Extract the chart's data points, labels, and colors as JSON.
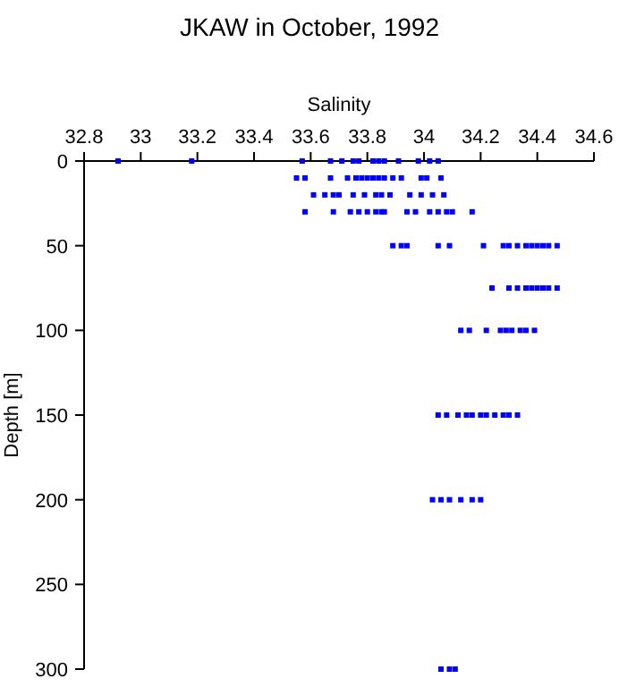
{
  "chart_data": {
    "type": "scatter",
    "title": "JKAW in October, 1992",
    "xlabel": "Salinity",
    "ylabel": "Depth [m]",
    "xlim": [
      32.8,
      34.6
    ],
    "xticks": [
      32.8,
      33,
      33.2,
      33.4,
      33.6,
      33.8,
      34,
      34.2,
      34.4,
      34.6
    ],
    "ylim": [
      300,
      0
    ],
    "yticks": [
      0,
      50,
      100,
      150,
      200,
      250,
      300
    ],
    "grid": false,
    "marker": "square",
    "series": [
      {
        "color": "#0000ff",
        "x": [
          32.92,
          33.18,
          33.57,
          33.67,
          33.71,
          33.75,
          33.77,
          33.82,
          33.84,
          33.86,
          33.91,
          33.98,
          34.02,
          34.05,
          33.55,
          33.58,
          33.67,
          33.73,
          33.76,
          33.78,
          33.8,
          33.82,
          33.84,
          33.86,
          33.89,
          33.92,
          33.99,
          34.01,
          34.06,
          33.61,
          33.65,
          33.68,
          33.7,
          33.75,
          33.79,
          33.83,
          33.85,
          33.88,
          33.95,
          33.99,
          34.03,
          34.07,
          33.58,
          33.68,
          33.74,
          33.77,
          33.8,
          33.83,
          33.85,
          33.86,
          33.94,
          33.97,
          34.02,
          34.05,
          34.08,
          34.1,
          34.17,
          33.89,
          33.92,
          33.94,
          34.05,
          34.09,
          34.21,
          34.28,
          34.3,
          34.33,
          34.36,
          34.38,
          34.4,
          34.42,
          34.44,
          34.47,
          34.24,
          34.3,
          34.33,
          34.36,
          34.38,
          34.4,
          34.42,
          34.44,
          34.47,
          34.13,
          34.16,
          34.22,
          34.27,
          34.29,
          34.31,
          34.34,
          34.36,
          34.39,
          34.05,
          34.08,
          34.12,
          34.15,
          34.17,
          34.2,
          34.22,
          34.25,
          34.28,
          34.3,
          34.33,
          34.03,
          34.06,
          34.09,
          34.13,
          34.17,
          34.2,
          34.06,
          34.09,
          34.11
        ],
        "values": [
          0,
          0,
          0,
          0,
          0,
          0,
          0,
          0,
          0,
          0,
          0,
          0,
          0,
          0,
          10,
          10,
          10,
          10,
          10,
          10,
          10,
          10,
          10,
          10,
          10,
          10,
          10,
          10,
          10,
          20,
          20,
          20,
          20,
          20,
          20,
          20,
          20,
          20,
          20,
          20,
          20,
          20,
          30,
          30,
          30,
          30,
          30,
          30,
          30,
          30,
          30,
          30,
          30,
          30,
          30,
          30,
          30,
          50,
          50,
          50,
          50,
          50,
          50,
          50,
          50,
          50,
          50,
          50,
          50,
          50,
          50,
          50,
          75,
          75,
          75,
          75,
          75,
          75,
          75,
          75,
          75,
          100,
          100,
          100,
          100,
          100,
          100,
          100,
          100,
          100,
          150,
          150,
          150,
          150,
          150,
          150,
          150,
          150,
          150,
          150,
          150,
          200,
          200,
          200,
          200,
          200,
          200,
          300,
          300,
          300
        ]
      }
    ]
  }
}
